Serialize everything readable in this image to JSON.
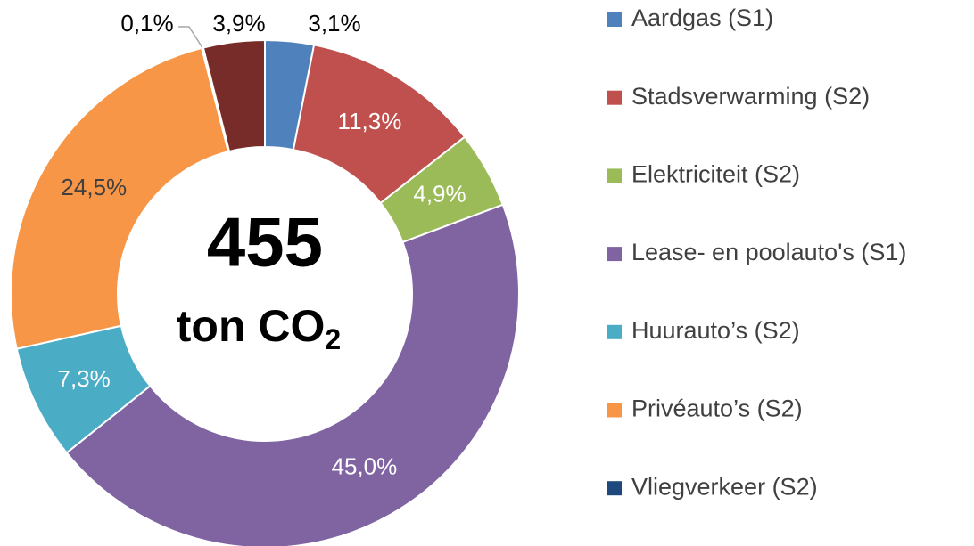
{
  "chart_data": {
    "type": "donut",
    "categories": [
      "Aardgas (S1)",
      "Stadsverwarming (S2)",
      "Elektriciteit (S2)",
      "Lease- en poolauto's (S1)",
      "Huurauto’s (S2)",
      "Privéauto’s (S2)",
      "Vliegverkeer (S2)",
      null
    ],
    "values": [
      3.1,
      11.3,
      4.9,
      45.0,
      7.3,
      24.5,
      0.1,
      3.9
    ],
    "value_labels": [
      "3,1%",
      "11,3%",
      "4,9%",
      "45,0%",
      "7,3%",
      "24,5%",
      "0,1%",
      "3,9%"
    ],
    "colors": [
      "#4f81bd",
      "#c0504d",
      "#9bbb59",
      "#8064a2",
      "#4bacc6",
      "#f79646",
      "#1f497d",
      "#772c2a"
    ],
    "center_text": {
      "main": "455",
      "unit": "ton CO",
      "unit_subscript": "2"
    },
    "legend": "right"
  }
}
